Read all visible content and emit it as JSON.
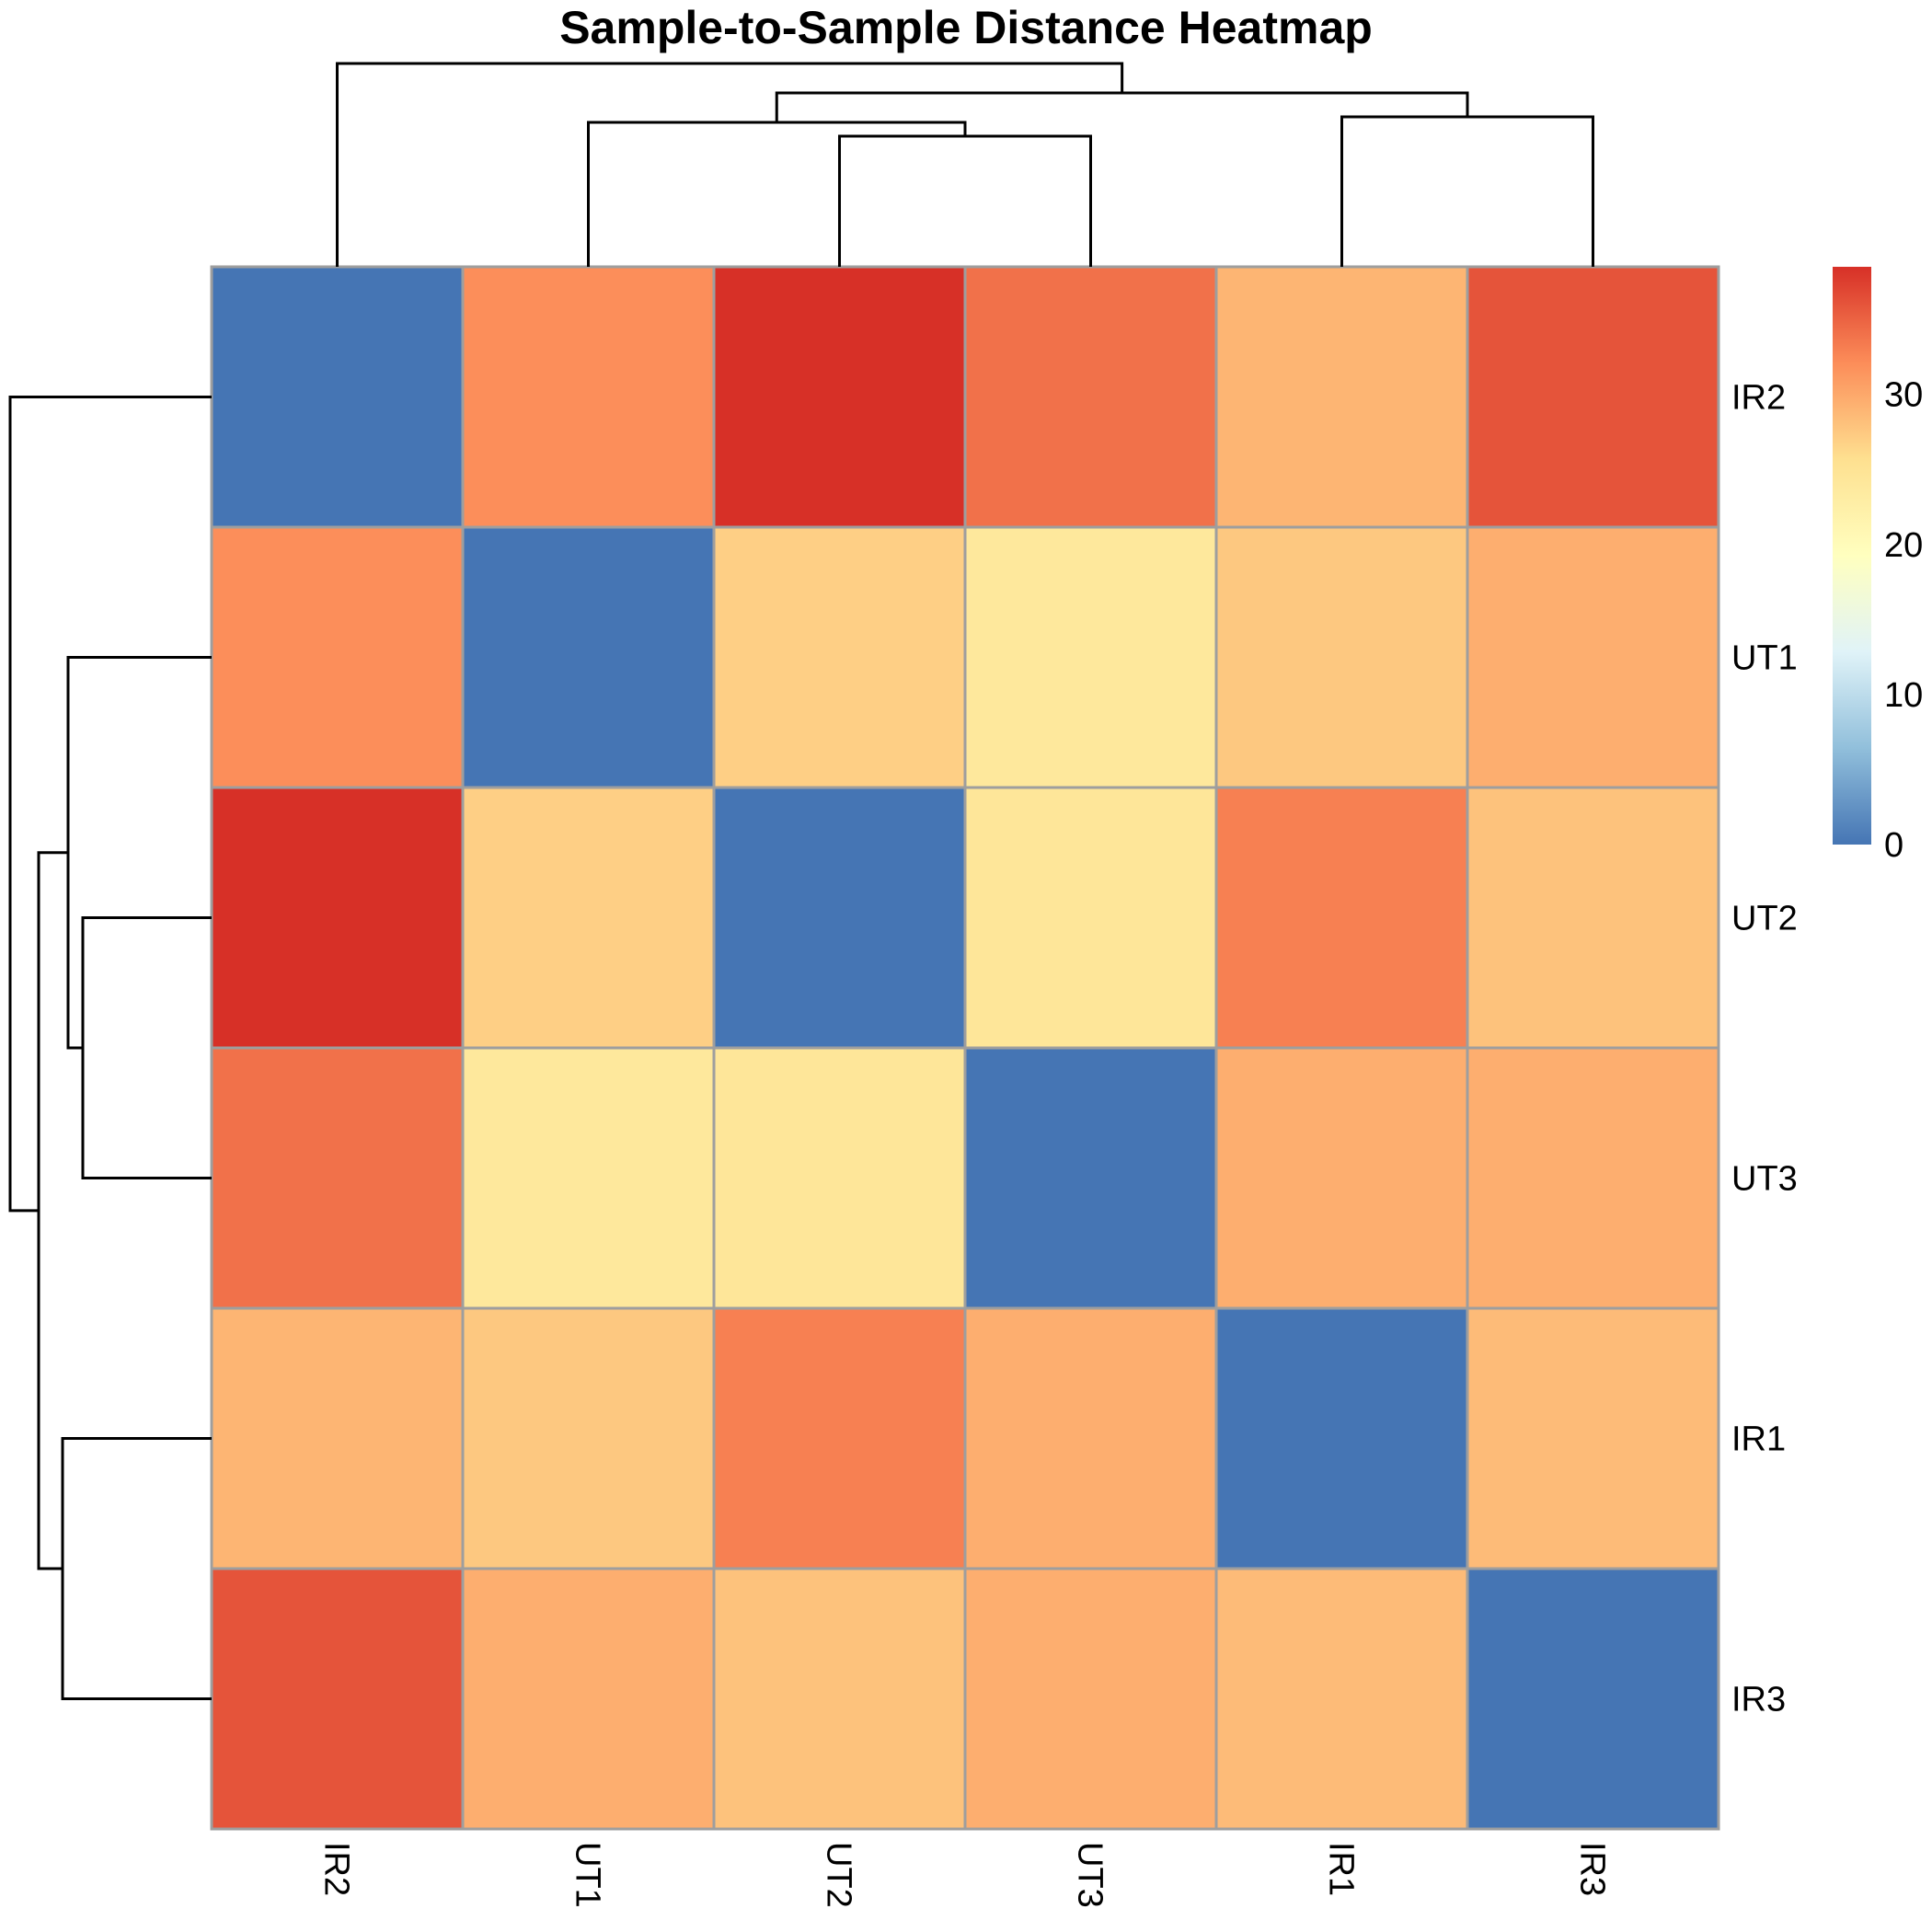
{
  "chart_data": {
    "type": "heatmap",
    "title": "Sample-to-Sample Distance Heatmap",
    "row_labels": [
      "IR2",
      "UT1",
      "UT2",
      "UT3",
      "IR1",
      "IR3"
    ],
    "col_labels": [
      "IR2",
      "UT1",
      "UT2",
      "UT3",
      "IR1",
      "IR3"
    ],
    "values": [
      [
        0,
        32,
        38.5,
        34,
        29,
        36
      ],
      [
        32,
        0,
        27,
        24,
        27.5,
        29.5
      ],
      [
        38.5,
        27,
        0,
        24.5,
        33,
        28
      ],
      [
        34,
        24,
        24.5,
        0,
        29.5,
        29.5
      ],
      [
        29,
        27.5,
        33,
        29.5,
        0,
        28.5
      ],
      [
        36,
        29.5,
        28,
        29.5,
        28.5,
        0
      ]
    ],
    "color_scale": {
      "min": 0,
      "max": 38.5,
      "colors": [
        "#4575b4",
        "#91bfdb",
        "#e0f3f8",
        "#ffffbf",
        "#fee090",
        "#fc8d59",
        "#d73027"
      ],
      "ticks": [
        0,
        10,
        20,
        30
      ]
    },
    "dendrogram_order": [
      "IR2",
      "UT1",
      "UT2",
      "UT3",
      "IR1",
      "IR3"
    ],
    "legend_position": "right"
  }
}
